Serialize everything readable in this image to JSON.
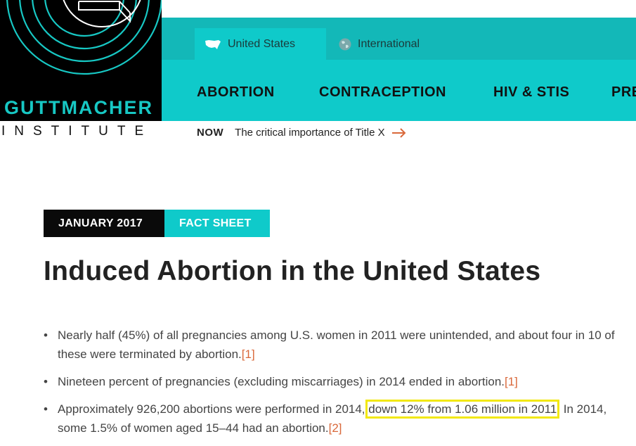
{
  "logo": {
    "name": "GUTTMACHER",
    "sub": "INSTITUTE"
  },
  "topnav": {
    "tabs": [
      {
        "label": "United States"
      },
      {
        "label": "International"
      }
    ]
  },
  "mainnav": {
    "items": [
      "ABORTION",
      "CONTRACEPTION",
      "HIV & STIS",
      "PRE"
    ]
  },
  "now": {
    "label": "NOW",
    "text": "The critical importance of Title X"
  },
  "article": {
    "date": "JANUARY 2017",
    "type": "FACT SHEET",
    "title": "Induced Abortion in the United States",
    "bullets": [
      {
        "text": "Nearly half (45%) of all pregnancies among U.S. women in 2011 were unintended, and about four in 10 of these were terminated by abortion.",
        "ref": "[1]"
      },
      {
        "text": "Nineteen percent of pregnancies (excluding miscarriages) in 2014 ended in abortion.",
        "ref": "[1]"
      },
      {
        "pre": "Approximately 926,200 abortions were performed in 2014, ",
        "highlight": "down 12% from 1.06 million in 2011",
        "post": ". In 2014, some 1.5% of women aged 15–44 had an abortion.",
        "ref": "[2]"
      }
    ]
  },
  "colors": {
    "teal": "#0fcaca",
    "teal_dark": "#13b8b8",
    "accent": "#d9683a",
    "highlight": "#f2e80e"
  }
}
